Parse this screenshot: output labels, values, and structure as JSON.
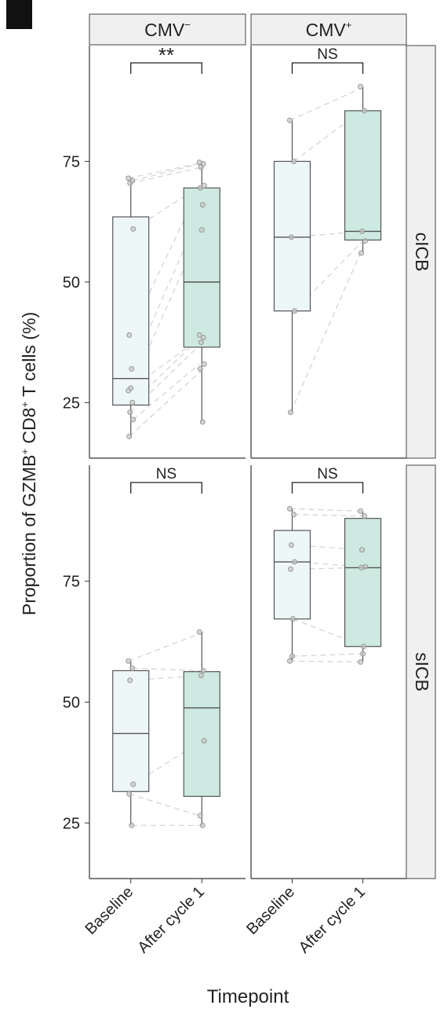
{
  "panel_label": "",
  "strips": {
    "cols": [
      {
        "base": "CMV",
        "sup": "−"
      },
      {
        "base": "CMV",
        "sup": "+"
      }
    ],
    "rows": [
      "cICB",
      "sICB"
    ]
  },
  "axes": {
    "ylabel": {
      "p1": "Proportion of GZMB",
      "sup1": "+",
      "p2": " CD8",
      "sup2": "+",
      "p3": " T cells (%)"
    },
    "xlabel": "Timepoint",
    "x_ticks": [
      "Baseline",
      "After cycle 1",
      "Baseline",
      "After cycle 1"
    ]
  },
  "colors": {
    "baseline_fill": "#eef7f8",
    "after_fill": "#cde9e1",
    "box_stroke": "#555555",
    "point": "#9a9a9a",
    "pair_line": "#d2d2d2",
    "strip_fill": "#f0f0f0"
  },
  "chart_data": {
    "type": "box",
    "y_ticks": [
      25,
      50,
      75
    ],
    "ylim": [
      13.5,
      99
    ],
    "facets": [
      {
        "row": "cICB",
        "col": "CMV−",
        "significance": "**",
        "baseline": {
          "whisker_low": 18,
          "q1": 24.5,
          "median": 30,
          "q3": 63.5,
          "whisker_high": 71.5,
          "points": [
            71.5,
            71,
            70.5,
            61,
            39,
            32,
            28,
            27.5,
            25,
            23,
            21.5,
            18
          ]
        },
        "after": {
          "whisker_low": 21,
          "q1": 36.5,
          "median": 50,
          "q3": 69.5,
          "whisker_high": 74.8,
          "points": [
            74.8,
            74.5,
            73.8,
            70,
            69.5,
            66,
            60.8,
            39,
            38.5,
            37.5,
            33,
            32,
            21
          ]
        }
      },
      {
        "row": "cICB",
        "col": "CMV+",
        "significance": "NS",
        "baseline": {
          "whisker_low": 23,
          "q1": 44,
          "median": 59.3,
          "q3": 75,
          "whisker_high": 83.5,
          "points": [
            83.5,
            75,
            59.3,
            44,
            23
          ]
        },
        "after": {
          "whisker_low": 56,
          "q1": 58.7,
          "median": 60.5,
          "q3": 85.5,
          "whisker_high": 90.5,
          "points": [
            90.5,
            85.5,
            60.5,
            58.5,
            56
          ]
        }
      },
      {
        "row": "sICB",
        "col": "CMV−",
        "significance": "NS",
        "baseline": {
          "whisker_low": 24.5,
          "q1": 31.5,
          "median": 43.5,
          "q3": 56.5,
          "whisker_high": 58.5,
          "points": [
            58.5,
            57,
            54.5,
            33,
            31,
            24.5
          ]
        },
        "after": {
          "whisker_low": 24.5,
          "q1": 30.5,
          "median": 48.8,
          "q3": 56.3,
          "whisker_high": 64.5,
          "points": [
            64.5,
            56.5,
            55.5,
            42,
            26.5,
            24.5
          ]
        }
      },
      {
        "row": "sICB",
        "col": "CMV+",
        "significance": "NS",
        "baseline": {
          "whisker_low": 58.5,
          "q1": 67.2,
          "median": 79,
          "q3": 85.5,
          "whisker_high": 90,
          "points": [
            90,
            88.8,
            82.5,
            79,
            77.5,
            67.2,
            59.5,
            58.5
          ]
        },
        "after": {
          "whisker_low": 58.3,
          "q1": 61.5,
          "median": 77.8,
          "q3": 88,
          "whisker_high": 89.5,
          "points": [
            89.5,
            88.5,
            81.5,
            78,
            77.8,
            61.5,
            60,
            58.3
          ]
        }
      }
    ]
  }
}
